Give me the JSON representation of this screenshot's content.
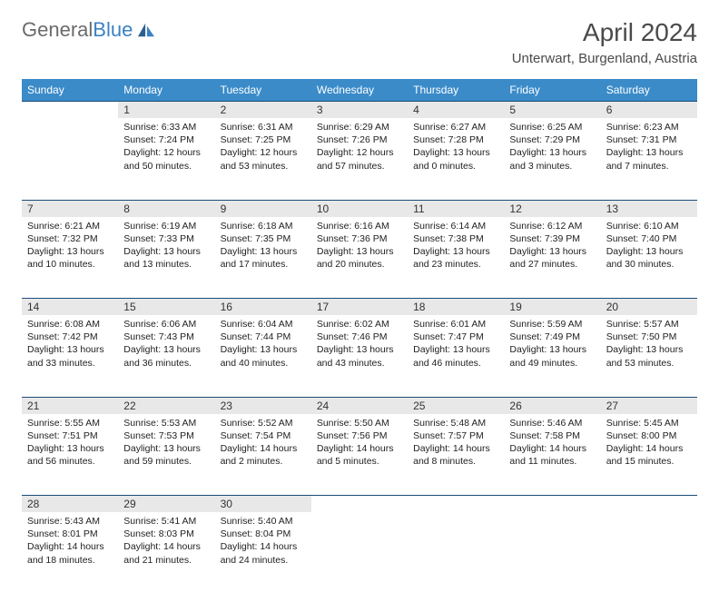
{
  "logo": {
    "text_general": "General",
    "text_blue": "Blue"
  },
  "title": "April 2024",
  "location": "Unterwart, Burgenland, Austria",
  "colors": {
    "header_bg": "#3b8bc9",
    "header_text": "#ffffff",
    "daynum_bg": "#e8e8e8",
    "rule": "#1a4d7a",
    "logo_gray": "#6b6b6b",
    "logo_blue": "#3b82c4"
  },
  "weekdays": [
    "Sunday",
    "Monday",
    "Tuesday",
    "Wednesday",
    "Thursday",
    "Friday",
    "Saturday"
  ],
  "weeks": [
    {
      "nums": [
        "",
        "1",
        "2",
        "3",
        "4",
        "5",
        "6"
      ],
      "cells": [
        null,
        {
          "sunrise": "6:33 AM",
          "sunset": "7:24 PM",
          "daylight": "12 hours and 50 minutes."
        },
        {
          "sunrise": "6:31 AM",
          "sunset": "7:25 PM",
          "daylight": "12 hours and 53 minutes."
        },
        {
          "sunrise": "6:29 AM",
          "sunset": "7:26 PM",
          "daylight": "12 hours and 57 minutes."
        },
        {
          "sunrise": "6:27 AM",
          "sunset": "7:28 PM",
          "daylight": "13 hours and 0 minutes."
        },
        {
          "sunrise": "6:25 AM",
          "sunset": "7:29 PM",
          "daylight": "13 hours and 3 minutes."
        },
        {
          "sunrise": "6:23 AM",
          "sunset": "7:31 PM",
          "daylight": "13 hours and 7 minutes."
        }
      ]
    },
    {
      "nums": [
        "7",
        "8",
        "9",
        "10",
        "11",
        "12",
        "13"
      ],
      "cells": [
        {
          "sunrise": "6:21 AM",
          "sunset": "7:32 PM",
          "daylight": "13 hours and 10 minutes."
        },
        {
          "sunrise": "6:19 AM",
          "sunset": "7:33 PM",
          "daylight": "13 hours and 13 minutes."
        },
        {
          "sunrise": "6:18 AM",
          "sunset": "7:35 PM",
          "daylight": "13 hours and 17 minutes."
        },
        {
          "sunrise": "6:16 AM",
          "sunset": "7:36 PM",
          "daylight": "13 hours and 20 minutes."
        },
        {
          "sunrise": "6:14 AM",
          "sunset": "7:38 PM",
          "daylight": "13 hours and 23 minutes."
        },
        {
          "sunrise": "6:12 AM",
          "sunset": "7:39 PM",
          "daylight": "13 hours and 27 minutes."
        },
        {
          "sunrise": "6:10 AM",
          "sunset": "7:40 PM",
          "daylight": "13 hours and 30 minutes."
        }
      ]
    },
    {
      "nums": [
        "14",
        "15",
        "16",
        "17",
        "18",
        "19",
        "20"
      ],
      "cells": [
        {
          "sunrise": "6:08 AM",
          "sunset": "7:42 PM",
          "daylight": "13 hours and 33 minutes."
        },
        {
          "sunrise": "6:06 AM",
          "sunset": "7:43 PM",
          "daylight": "13 hours and 36 minutes."
        },
        {
          "sunrise": "6:04 AM",
          "sunset": "7:44 PM",
          "daylight": "13 hours and 40 minutes."
        },
        {
          "sunrise": "6:02 AM",
          "sunset": "7:46 PM",
          "daylight": "13 hours and 43 minutes."
        },
        {
          "sunrise": "6:01 AM",
          "sunset": "7:47 PM",
          "daylight": "13 hours and 46 minutes."
        },
        {
          "sunrise": "5:59 AM",
          "sunset": "7:49 PM",
          "daylight": "13 hours and 49 minutes."
        },
        {
          "sunrise": "5:57 AM",
          "sunset": "7:50 PM",
          "daylight": "13 hours and 53 minutes."
        }
      ]
    },
    {
      "nums": [
        "21",
        "22",
        "23",
        "24",
        "25",
        "26",
        "27"
      ],
      "cells": [
        {
          "sunrise": "5:55 AM",
          "sunset": "7:51 PM",
          "daylight": "13 hours and 56 minutes."
        },
        {
          "sunrise": "5:53 AM",
          "sunset": "7:53 PM",
          "daylight": "13 hours and 59 minutes."
        },
        {
          "sunrise": "5:52 AM",
          "sunset": "7:54 PM",
          "daylight": "14 hours and 2 minutes."
        },
        {
          "sunrise": "5:50 AM",
          "sunset": "7:56 PM",
          "daylight": "14 hours and 5 minutes."
        },
        {
          "sunrise": "5:48 AM",
          "sunset": "7:57 PM",
          "daylight": "14 hours and 8 minutes."
        },
        {
          "sunrise": "5:46 AM",
          "sunset": "7:58 PM",
          "daylight": "14 hours and 11 minutes."
        },
        {
          "sunrise": "5:45 AM",
          "sunset": "8:00 PM",
          "daylight": "14 hours and 15 minutes."
        }
      ]
    },
    {
      "nums": [
        "28",
        "29",
        "30",
        "",
        "",
        "",
        ""
      ],
      "cells": [
        {
          "sunrise": "5:43 AM",
          "sunset": "8:01 PM",
          "daylight": "14 hours and 18 minutes."
        },
        {
          "sunrise": "5:41 AM",
          "sunset": "8:03 PM",
          "daylight": "14 hours and 21 minutes."
        },
        {
          "sunrise": "5:40 AM",
          "sunset": "8:04 PM",
          "daylight": "14 hours and 24 minutes."
        },
        null,
        null,
        null,
        null
      ]
    }
  ],
  "labels": {
    "sunrise": "Sunrise: ",
    "sunset": "Sunset: ",
    "daylight": "Daylight: "
  }
}
